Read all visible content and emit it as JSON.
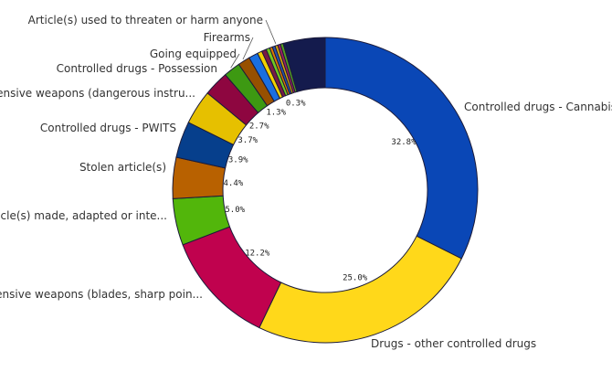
{
  "chart_data": {
    "type": "pie",
    "donut": true,
    "title": "",
    "legend": "none",
    "slices": [
      {
        "label": "Controlled drugs - Cannabis",
        "pct_label": "32.8%",
        "value": 32.8,
        "color": "#0a47b6"
      },
      {
        "label": "Drugs - other controlled drugs",
        "pct_label": "25.0%",
        "value": 25.0,
        "color": "#ffd81a"
      },
      {
        "label": "Offensive weapons (blades, sharp poin...",
        "pct_label": "12.2%",
        "value": 12.2,
        "color": "#c0024e"
      },
      {
        "label": "Article(s) made, adapted or inte...",
        "pct_label": "5.0%",
        "value": 5.0,
        "color": "#52b60b"
      },
      {
        "label": "Stolen article(s)",
        "pct_label": "4.4%",
        "value": 4.4,
        "color": "#b86100"
      },
      {
        "label": "Controlled drugs - PWITS",
        "pct_label": "3.9%",
        "value": 3.9,
        "color": "#063f8c"
      },
      {
        "label": "Offensive weapons (dangerous instru...",
        "pct_label": "3.7%",
        "value": 3.7,
        "color": "#e6c000"
      },
      {
        "label": "Controlled drugs - Possession",
        "pct_label": "2.7%",
        "value": 2.7,
        "color": "#8e0640"
      },
      {
        "label": "Going equipped",
        "pct_label": "",
        "value": 1.8,
        "color": "#3d9912"
      },
      {
        "label": "Firearms",
        "pct_label": "1.3%",
        "value": 1.3,
        "color": "#975000"
      },
      {
        "label": "",
        "pct_label": "",
        "value": 1.0,
        "color": "#1a6fe0"
      },
      {
        "label": "",
        "pct_label": "",
        "value": 0.5,
        "color": "#f2d100"
      },
      {
        "label": "",
        "pct_label": "",
        "value": 0.5,
        "color": "#7a1a44"
      },
      {
        "label": "",
        "pct_label": "",
        "value": 0.4,
        "color": "#73c81e"
      },
      {
        "label": "",
        "pct_label": "",
        "value": 0.3,
        "color": "#e07b00"
      },
      {
        "label": "",
        "pct_label": "",
        "value": 0.3,
        "color": "#2855b0"
      },
      {
        "label": "Article(s) used to threaten or harm anyone",
        "pct_label": "0.3%",
        "value": 0.3,
        "color": "#d6a30a"
      },
      {
        "label": "",
        "pct_label": "",
        "value": 0.3,
        "color": "#a02060"
      },
      {
        "label": "",
        "pct_label": "",
        "value": 0.3,
        "color": "#55a020"
      },
      {
        "label": "",
        "pct_label": "",
        "value": 4.5,
        "color": "#141b4d"
      }
    ]
  }
}
